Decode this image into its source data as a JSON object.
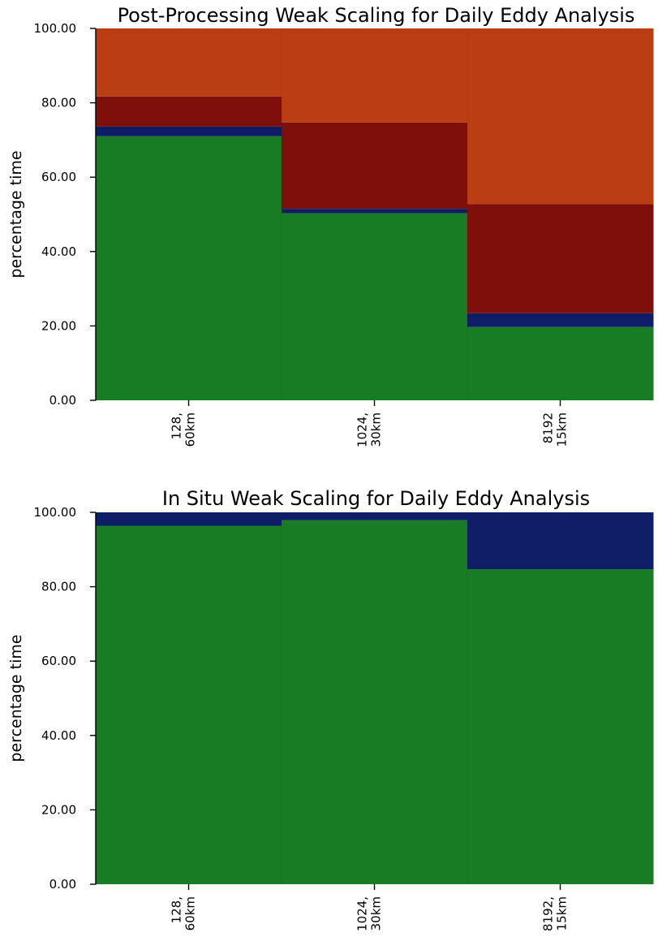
{
  "colors": {
    "computation": "#177c23",
    "io_small": "#0e1e66",
    "dark_segment": "#7e0f0b",
    "orange_segment": "#bb3d13"
  },
  "chart_data": [
    {
      "type": "bar",
      "stacked": true,
      "title": "Post-Processing Weak Scaling for Daily Eddy Analysis",
      "xlabel": "",
      "ylabel": "percentage time",
      "ylim": [
        0,
        100
      ],
      "yticks": [
        "0.00",
        "20.00",
        "40.00",
        "60.00",
        "80.00",
        "100.00"
      ],
      "categories": [
        "128,\n60km",
        "1024,\n30km",
        "8192\n15km"
      ],
      "grid": false,
      "legend": "none",
      "series": [
        {
          "color_key": "computation",
          "values": [
            71.0,
            50.3,
            19.7
          ]
        },
        {
          "color_key": "io_small",
          "values": [
            2.6,
            1.2,
            3.7
          ]
        },
        {
          "color_key": "dark_segment",
          "values": [
            8.1,
            23.2,
            29.4
          ]
        },
        {
          "color_key": "orange_segment",
          "values": [
            18.3,
            25.3,
            47.2
          ]
        }
      ]
    },
    {
      "type": "bar",
      "stacked": true,
      "title": "In Situ Weak Scaling for Daily Eddy Analysis",
      "xlabel": "",
      "ylabel": "percentage time",
      "ylim": [
        0,
        100
      ],
      "yticks": [
        "0.00",
        "20.00",
        "40.00",
        "60.00",
        "80.00",
        "100.00"
      ],
      "categories": [
        "128,\n60km",
        "1024,\n30km",
        "8192,\n15km"
      ],
      "grid": false,
      "legend": "none",
      "series": [
        {
          "color_key": "computation",
          "values": [
            96.4,
            97.9,
            84.7
          ]
        },
        {
          "color_key": "io_small",
          "values": [
            3.6,
            2.1,
            15.3
          ]
        }
      ]
    }
  ]
}
